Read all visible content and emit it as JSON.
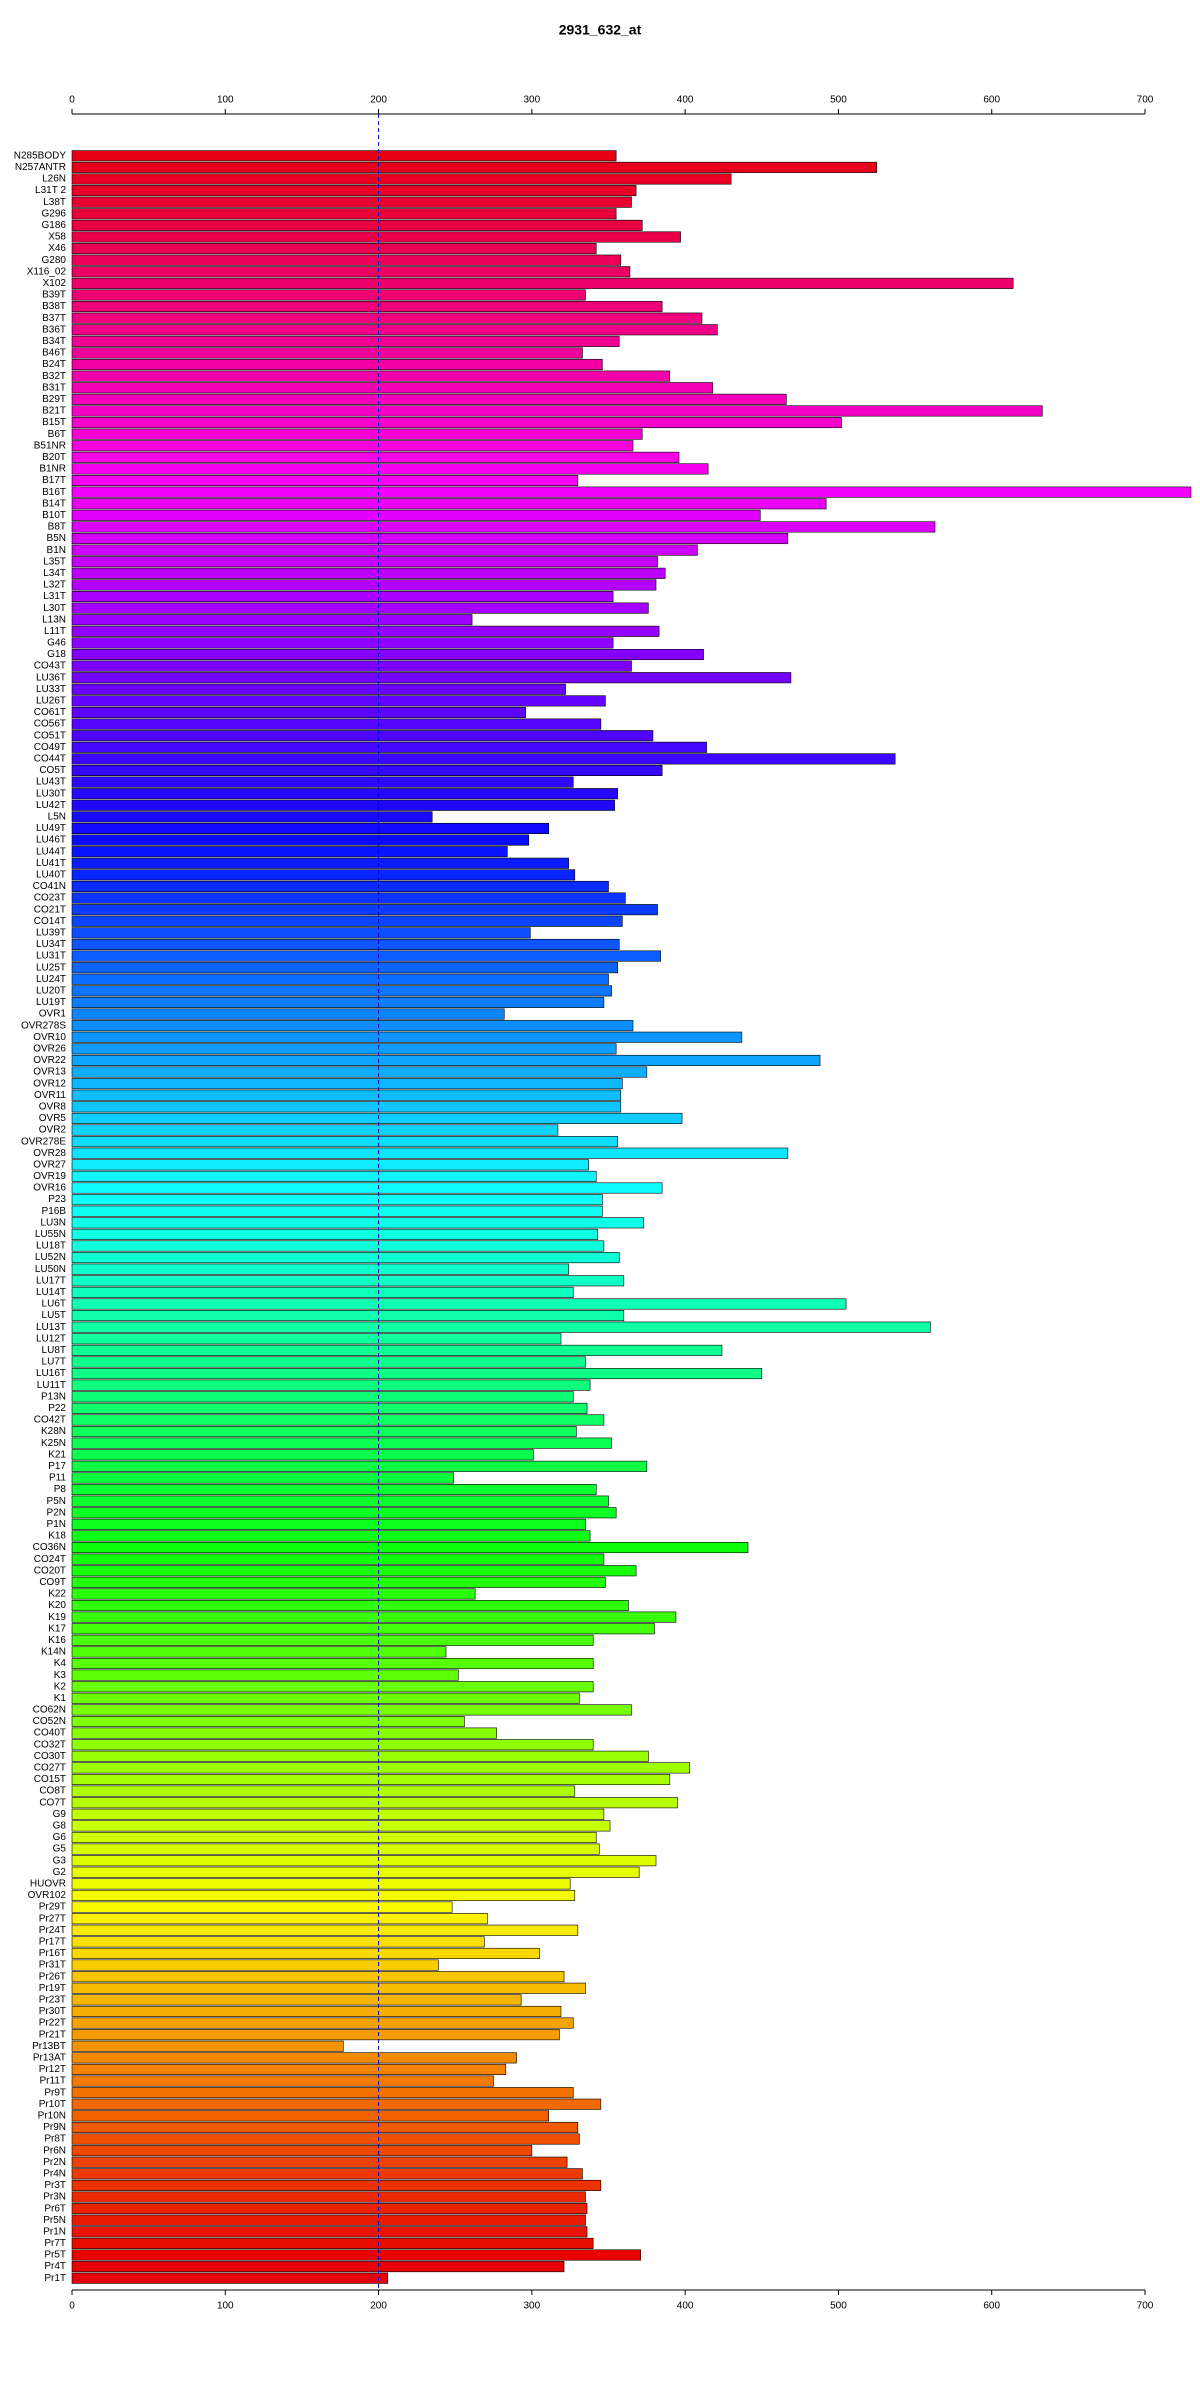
{
  "chart_data": {
    "type": "barh",
    "title": "2931_632_at",
    "categories": [
      "N285BODY",
      "N257ANTR",
      "L26N",
      "L31T 2",
      "L38T",
      "G296",
      "G186",
      "X58",
      "X46",
      "G280",
      "X116_02",
      "X102",
      "B39T",
      "B38T",
      "B37T",
      "B36T",
      "B34T",
      "B46T",
      "B24T",
      "B32T",
      "B31T",
      "B29T",
      "B21T",
      "B15T",
      "B6T",
      "B51NR",
      "B20T",
      "B1NR",
      "B17T",
      "B16T",
      "B14T",
      "B10T",
      "B8T",
      "B5N",
      "B1N",
      "L35T",
      "L34T",
      "L32T",
      "L31T",
      "L30T",
      "L13N",
      "L11T",
      "G46",
      "G18",
      "CO43T",
      "LU36T",
      "LU33T",
      "LU26T",
      "CO61T",
      "CO56T",
      "CO51T",
      "CO49T",
      "CO44T",
      "CO5T",
      "LU43T",
      "LU30T",
      "LU42T",
      "L5N",
      "LU49T",
      "LU46T",
      "LU44T",
      "LU41T",
      "LU40T",
      "CO41N",
      "CO23T",
      "CO21T",
      "CO14T",
      "LU39T",
      "LU34T",
      "LU31T",
      "LU25T",
      "LU24T",
      "LU20T",
      "LU19T",
      "OVR1",
      "OVR278S",
      "OVR10",
      "OVR26",
      "OVR22",
      "OVR13",
      "OVR12",
      "OVR11",
      "OVR8",
      "OVR5",
      "OVR2",
      "OVR278E",
      "OVR28",
      "OVR27",
      "OVR19",
      "OVR16",
      "P23",
      "P16B",
      "LU3N",
      "LU55N",
      "LU18T",
      "LU52N",
      "LU50N",
      "LU17T",
      "LU14T",
      "LU6T",
      "LU5T",
      "LU13T",
      "LU12T",
      "LU8T",
      "LU7T",
      "LU16T",
      "LU11T",
      "P13N",
      "P22",
      "CO42T",
      "K28N",
      "K25N",
      "K21",
      "P17",
      "P11",
      "P8",
      "P5N",
      "P2N",
      "P1N",
      "K18",
      "CO36N",
      "CO24T",
      "CO20T",
      "CO9T",
      "K22",
      "K20",
      "K19",
      "K17",
      "K16",
      "K14N",
      "K4",
      "K3",
      "K2",
      "K1",
      "CO62N",
      "CO52N",
      "CO40T",
      "CO32T",
      "CO30T",
      "CO27T",
      "CO15T",
      "CO8T",
      "CO7T",
      "G9",
      "G8",
      "G6",
      "G5",
      "G3",
      "G2",
      "HUOVR",
      "OVR102",
      "Pr29T",
      "Pr27T",
      "Pr24T",
      "Pr17T",
      "Pr16T",
      "Pr31T",
      "Pr26T",
      "Pr19T",
      "Pr23T",
      "Pr30T",
      "Pr22T",
      "Pr21T",
      "Pr13BT",
      "Pr13AT",
      "Pr12T",
      "Pr11T",
      "Pr9T",
      "Pr10T",
      "Pr10N",
      "Pr9N",
      "Pr8T",
      "Pr6N",
      "Pr2N",
      "Pr4N",
      "Pr3T",
      "Pr3N",
      "Pr6T",
      "Pr5N",
      "Pr1N",
      "Pr7T",
      "Pr5T",
      "Pr4T",
      "Pr1T"
    ],
    "values": [
      355,
      525,
      430,
      368,
      365,
      355,
      372,
      397,
      342,
      358,
      364,
      614,
      335,
      385,
      411,
      421,
      357,
      333,
      346,
      390,
      418,
      466,
      633,
      502,
      372,
      366,
      396,
      415,
      330,
      730,
      492,
      449,
      563,
      467,
      408,
      382,
      387,
      381,
      353,
      376,
      261,
      383,
      353,
      412,
      365,
      469,
      322,
      348,
      296,
      345,
      379,
      414,
      537,
      385,
      327,
      356,
      354,
      235,
      311,
      298,
      284,
      324,
      328,
      350,
      361,
      382,
      359,
      299,
      357,
      384,
      356,
      350,
      352,
      347,
      282,
      366,
      437,
      355,
      488,
      375,
      359,
      358,
      358,
      398,
      317,
      356,
      467,
      337,
      342,
      385,
      346,
      346,
      373,
      343,
      347,
      357,
      324,
      360,
      327,
      505,
      360,
      560,
      319,
      424,
      335,
      450,
      338,
      327,
      336,
      347,
      329,
      352,
      301,
      375,
      249,
      342,
      350,
      355,
      335,
      338,
      441,
      347,
      368,
      348,
      263,
      363,
      394,
      380,
      340,
      244,
      340,
      252,
      340,
      331,
      365,
      256,
      277,
      340,
      376,
      403,
      390,
      328,
      395,
      347,
      351,
      342,
      344,
      381,
      370,
      325,
      328,
      248,
      271,
      330,
      269,
      305,
      239,
      321,
      335,
      293,
      319,
      327,
      318,
      177,
      290,
      283,
      275,
      327,
      345,
      311,
      330,
      331,
      300,
      323,
      333,
      345,
      335,
      336,
      335,
      336,
      340,
      371,
      321,
      206
    ],
    "colormap": "rainbow",
    "xlim": [
      0,
      700
    ],
    "xticks": [
      0,
      100,
      200,
      300,
      400,
      500,
      600,
      700
    ],
    "reference_line": 200,
    "reference_color": "#0000cc"
  }
}
